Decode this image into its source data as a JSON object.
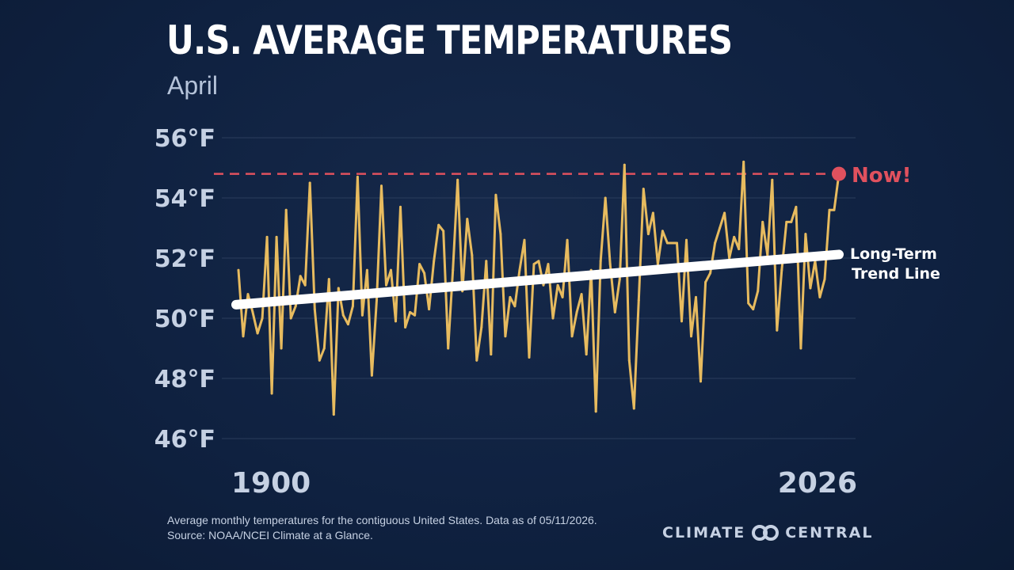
{
  "header": {
    "title": "U.S. AVERAGE TEMPERATURES",
    "subtitle": "April"
  },
  "annotations": {
    "now_label": "Now!",
    "trend_label_line1": "Long-Term",
    "trend_label_line2": "Trend Line"
  },
  "footnote": {
    "line1": "Average monthly temperatures for the contiguous United States. Data as of 05/11/2026.",
    "line2": "Source: NOAA/NCEI Climate at a Glance."
  },
  "brand": {
    "left": "CLIMATE",
    "right": "CENTRAL",
    "icon": "climate-central-logo"
  },
  "colors": {
    "background": "#0f2140",
    "series": "#e7bb5f",
    "trend": "#ffffff",
    "now": "#e0515e",
    "grid": "#2a3d5c"
  },
  "chart_data": {
    "type": "line",
    "title": "U.S. AVERAGE TEMPERATURES",
    "subtitle": "April",
    "xlabel": "",
    "ylabel": "",
    "xlim": [
      1900,
      2026
    ],
    "ylim": [
      46,
      56
    ],
    "x_tick_labels": [
      "1900",
      "2026"
    ],
    "y_ticks": [
      46,
      48,
      50,
      52,
      54,
      56
    ],
    "y_tick_labels": [
      "46°F",
      "48°F",
      "50°F",
      "52°F",
      "54°F",
      "56°F"
    ],
    "grid": true,
    "series": [
      {
        "name": "",
        "x_start": 1900,
        "x_end": 2026,
        "values": [
          51.6,
          49.4,
          50.8,
          50.2,
          49.5,
          50.0,
          52.7,
          47.5,
          52.7,
          49.0,
          53.6,
          50.0,
          50.4,
          51.4,
          51.1,
          54.5,
          50.3,
          48.6,
          49.0,
          51.3,
          46.8,
          51.0,
          50.1,
          49.8,
          50.4,
          54.7,
          50.1,
          51.6,
          48.1,
          50.6,
          54.4,
          51.1,
          51.6,
          49.9,
          53.7,
          49.7,
          50.2,
          50.1,
          51.8,
          51.5,
          50.3,
          51.9,
          53.1,
          52.9,
          49.0,
          51.6,
          54.6,
          50.9,
          53.3,
          52.1,
          48.6,
          49.7,
          51.9,
          48.8,
          54.1,
          52.8,
          49.4,
          50.7,
          50.4,
          51.6,
          52.6,
          48.7,
          51.8,
          51.9,
          51.1,
          51.8,
          50.0,
          51.1,
          50.7,
          52.6,
          49.4,
          50.2,
          50.8,
          48.8,
          51.6,
          46.9,
          51.9,
          54.0,
          51.8,
          50.2,
          51.3,
          55.1,
          48.6,
          47.0,
          50.6,
          54.3,
          52.8,
          53.5,
          51.8,
          52.9,
          52.5,
          52.5,
          52.5,
          49.9,
          52.6,
          49.4,
          50.7,
          47.9,
          51.2,
          51.5,
          52.5,
          53.0,
          53.5,
          52.0,
          52.7,
          52.3,
          55.2,
          50.5,
          50.3,
          50.9,
          53.2,
          52.1,
          54.6,
          49.6,
          51.6,
          53.2,
          53.2,
          53.7,
          49.0,
          52.8,
          51.0,
          51.9,
          50.7,
          51.3,
          53.6,
          53.6,
          54.8
        ]
      }
    ],
    "trend_line": {
      "name": "Long-Term Trend Line",
      "start": [
        1900,
        50.45
      ],
      "end": [
        2026,
        52.12
      ]
    },
    "reference_line": {
      "name": "Now!",
      "y": 54.8,
      "point": [
        2026,
        54.8
      ]
    }
  }
}
